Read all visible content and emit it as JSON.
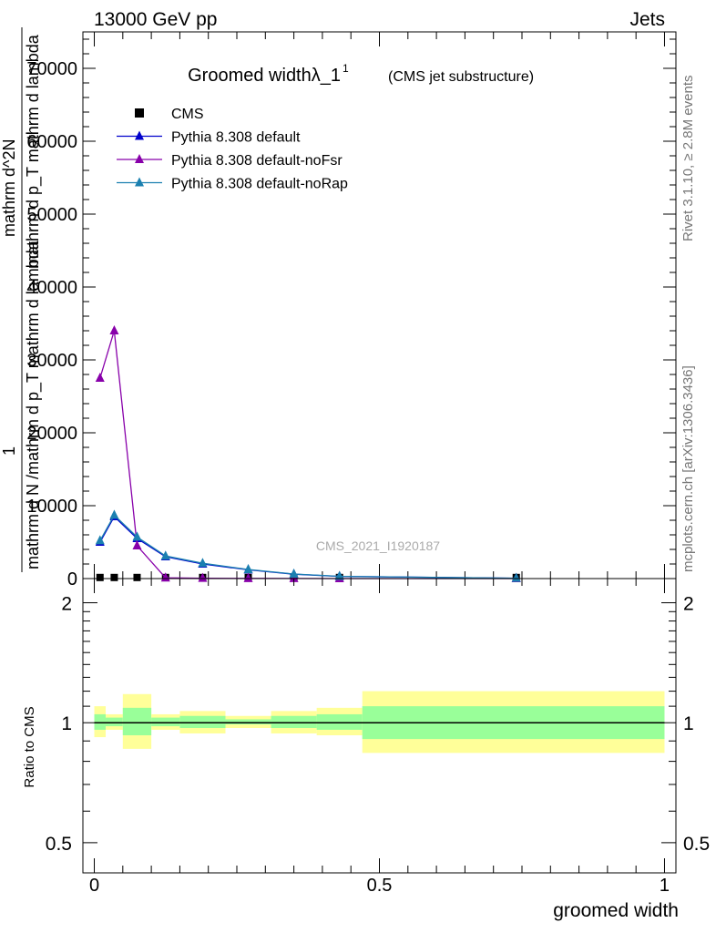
{
  "header": {
    "left": "13000 GeV pp",
    "right": "Jets",
    "side_top": "Rivet 3.1.10, ≥ 2.8M events",
    "side_bottom": "mcplots.cern.ch [arXiv:1306.3436]"
  },
  "chart_data": [
    {
      "type": "line",
      "title": "Groomed widthλ_1",
      "title_sup": "1",
      "subtitle": "(CMS jet substructure)",
      "watermark": "CMS_2021_I1920187",
      "ylabel_lines": [
        "1",
        "mathrm d N /mathrm d p_T mathrm d lambda",
        "mathrm d^2N",
        "mathrm d p_T mathrm d lambda"
      ],
      "ylim": [
        0,
        75000
      ],
      "xlim": [
        -0.02,
        1.02
      ],
      "yticks": [
        0,
        10000,
        20000,
        30000,
        40000,
        50000,
        60000,
        70000
      ],
      "ytick_labels": [
        "0",
        "10000",
        "20000",
        "30000",
        "40000",
        "50000",
        "60000",
        "70000"
      ],
      "grid": false,
      "legend_position": "top-left",
      "colors": {
        "CMS": "#000000",
        "default": "#0000cc",
        "noFsr": "#8800aa",
        "noRap": "#1b80b0"
      },
      "series": [
        {
          "name": "CMS",
          "style": "marker",
          "x": [
            0.01,
            0.035,
            0.075,
            0.125,
            0.19,
            0.27,
            0.35,
            0.43,
            0.74
          ],
          "y": [
            150,
            150,
            150,
            150,
            150,
            150,
            150,
            150,
            150
          ]
        },
        {
          "name": "Pythia 8.308 default",
          "style": "line",
          "x": [
            0.01,
            0.035,
            0.075,
            0.125,
            0.19,
            0.27,
            0.35,
            0.43,
            0.74
          ],
          "y": [
            5000,
            8500,
            5500,
            3000,
            2000,
            1200,
            600,
            300,
            50
          ]
        },
        {
          "name": "Pythia 8.308 default-noFsr",
          "style": "line",
          "x": [
            0.01,
            0.035,
            0.075,
            0.125,
            0.19,
            0.27,
            0.35,
            0.43,
            0.74
          ],
          "y": [
            27500,
            34000,
            4500,
            100,
            50,
            20,
            10,
            5,
            0
          ]
        },
        {
          "name": "Pythia 8.308 default-noRap",
          "style": "line",
          "x": [
            0.01,
            0.035,
            0.075,
            0.125,
            0.19,
            0.27,
            0.35,
            0.43,
            0.74
          ],
          "y": [
            5200,
            8700,
            5700,
            3100,
            2100,
            1250,
            620,
            310,
            50
          ]
        }
      ]
    },
    {
      "type": "area",
      "ylabel": "Ratio to CMS",
      "xlabel": "groomed width",
      "ylim": [
        0.42,
        2.3
      ],
      "xlim": [
        -0.02,
        1.02
      ],
      "log_y": true,
      "yticks": [
        0.5,
        1,
        2
      ],
      "ytick_labels": [
        "0.5",
        "1",
        "2"
      ],
      "xticks": [
        0,
        0.5,
        1
      ],
      "xtick_labels": [
        "0",
        "0.5",
        "1"
      ],
      "colors": {
        "inner": "#99ff99",
        "outer": "#ffff99",
        "line": "#000000"
      },
      "bins": [
        {
          "x0": 0.0,
          "x1": 0.02,
          "inner": [
            0.96,
            1.05
          ],
          "outer": [
            0.92,
            1.1
          ]
        },
        {
          "x0": 0.02,
          "x1": 0.05,
          "inner": [
            0.98,
            1.03
          ],
          "outer": [
            0.96,
            1.05
          ]
        },
        {
          "x0": 0.05,
          "x1": 0.1,
          "inner": [
            0.93,
            1.09
          ],
          "outer": [
            0.86,
            1.18
          ]
        },
        {
          "x0": 0.1,
          "x1": 0.15,
          "inner": [
            0.98,
            1.03
          ],
          "outer": [
            0.96,
            1.05
          ]
        },
        {
          "x0": 0.15,
          "x1": 0.23,
          "inner": [
            0.97,
            1.04
          ],
          "outer": [
            0.94,
            1.07
          ]
        },
        {
          "x0": 0.23,
          "x1": 0.31,
          "inner": [
            0.99,
            1.02
          ],
          "outer": [
            0.97,
            1.04
          ]
        },
        {
          "x0": 0.31,
          "x1": 0.39,
          "inner": [
            0.97,
            1.04
          ],
          "outer": [
            0.94,
            1.07
          ]
        },
        {
          "x0": 0.39,
          "x1": 0.47,
          "inner": [
            0.96,
            1.05
          ],
          "outer": [
            0.93,
            1.09
          ]
        },
        {
          "x0": 0.47,
          "x1": 1.0,
          "inner": [
            0.91,
            1.1
          ],
          "outer": [
            0.84,
            1.2
          ]
        }
      ]
    }
  ]
}
